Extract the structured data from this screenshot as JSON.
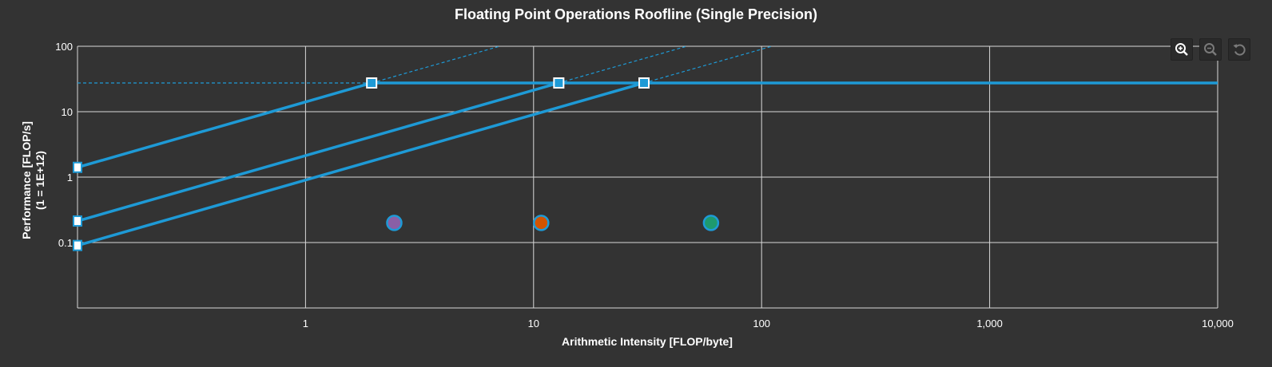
{
  "chart_data": {
    "type": "line",
    "title": "Floating Point Operations Roofline (Single Precision)",
    "xlabel": "Arithmetic Intensity [FLOP/byte]",
    "ylabel": "Performance [FLOP/s]",
    "ylabel_sub": "(1 = 1E+12)",
    "x_scale": "log",
    "y_scale": "log",
    "xlim": [
      0.1,
      10000
    ],
    "ylim": [
      0.01,
      100
    ],
    "x_ticks": [
      1,
      10,
      100,
      1000,
      10000
    ],
    "x_tick_labels": [
      "1",
      "10",
      "100",
      "1,000",
      "10,000"
    ],
    "y_ticks": [
      0.1,
      1,
      10,
      100
    ],
    "y_tick_labels": [
      "0.1",
      "1",
      "10",
      "100"
    ],
    "grid": true,
    "peak_performance": 27.5,
    "series": [
      {
        "y_at_xmin": 1.4,
        "ridge_x": 1.95,
        "color": "#1e9ad6"
      },
      {
        "y_at_xmin": 0.21,
        "ridge_x": 12.9,
        "color": "#1e9ad6"
      },
      {
        "y_at_xmin": 0.092,
        "ridge_x": 30.5,
        "color": "#1e9ad6"
      }
    ],
    "points": [
      {
        "x": 2.45,
        "y": 0.2,
        "color": "#8a5fa6"
      },
      {
        "x": 10.8,
        "y": 0.2,
        "color": "#d35400"
      },
      {
        "x": 60,
        "y": 0.2,
        "color": "#1e9a6e"
      }
    ]
  },
  "colors": {
    "background": "#333333",
    "grid": "#d9d9d9",
    "roof": "#1e9ad6",
    "text": "#ffffff"
  },
  "toolbar": {
    "zoom_in_icon": "zoom-in-icon",
    "zoom_out_icon": "zoom-out-icon",
    "reset_icon": "reset-icon"
  }
}
